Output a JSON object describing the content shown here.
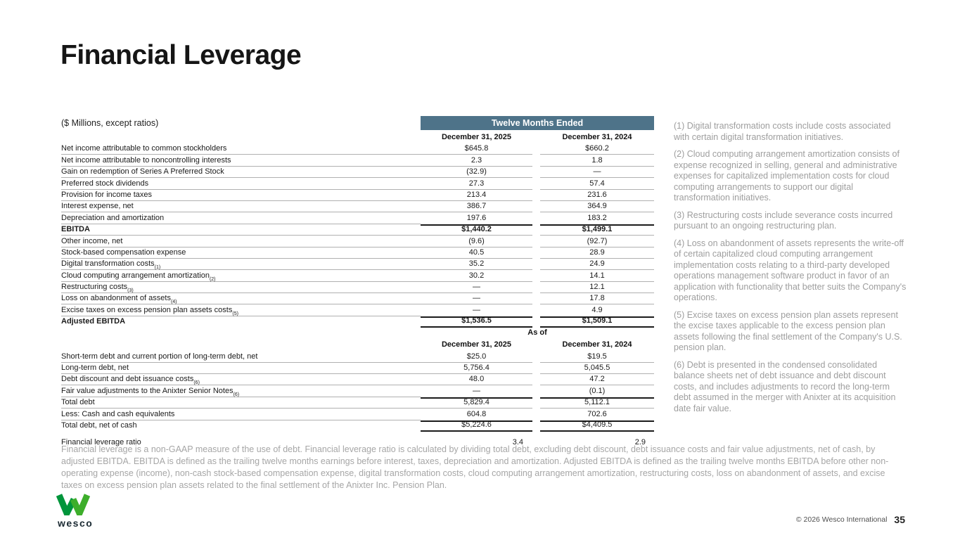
{
  "page": {
    "title": "Financial Leverage",
    "units_label": "($ Millions, except ratios)",
    "footer": {
      "logo_text": "wesco",
      "copyright": "© 2026 Wesco International",
      "page_number": "35"
    }
  },
  "colors": {
    "header_bar": "#4e7389",
    "logo_green_dark": "#00953b",
    "logo_green_bright": "#3dae2b",
    "row_line_gray": "#b0b0b0",
    "total_line_black": "#1b1b1b",
    "footnote_gray": "#9e9e9e"
  },
  "table": {
    "section1": {
      "header": "Twelve Months Ended",
      "col_headers": [
        "December 31, 2025",
        "December 31, 2024"
      ],
      "rows": [
        {
          "label": "Net income attributable to common stockholders",
          "sup": "",
          "v1": "$645.8",
          "v2": "$660.2"
        },
        {
          "label": "Net income attributable to noncontrolling interests",
          "sup": "",
          "v1": "2.3",
          "v2": "1.8"
        },
        {
          "label": "Gain on redemption of Series A Preferred Stock",
          "sup": "",
          "v1": "(32.9)",
          "v2": "—"
        },
        {
          "label": "Preferred stock dividends",
          "sup": "",
          "v1": "27.3",
          "v2": "57.4"
        },
        {
          "label": "Provision for income taxes",
          "sup": "",
          "v1": "213.4",
          "v2": "231.6"
        },
        {
          "label": "Interest expense, net",
          "sup": "",
          "v1": "386.7",
          "v2": "364.9"
        },
        {
          "label": "Depreciation and amortization",
          "sup": "",
          "v1": "197.6",
          "v2": "183.2",
          "lblOnly": true
        },
        {
          "label": "EBITDA",
          "sup": "",
          "v1": "$1,440.2",
          "v2": "$1,499.1",
          "bold": true,
          "top": true
        },
        {
          "label": "Other income, net",
          "sup": "",
          "v1": "(9.6)",
          "v2": "(92.7)"
        },
        {
          "label": "Stock-based compensation expense",
          "sup": "",
          "v1": "40.5",
          "v2": "28.9"
        },
        {
          "label": "Digital transformation costs",
          "sup": "(1)",
          "v1": "35.2",
          "v2": "24.9"
        },
        {
          "label": "Cloud computing arrangement amortization",
          "sup": "(2)",
          "v1": "30.2",
          "v2": "14.1"
        },
        {
          "label": "Restructuring costs",
          "sup": "(3)",
          "v1": "—",
          "v2": "12.1"
        },
        {
          "label": "Loss on abandonment of assets",
          "sup": "(4)",
          "v1": "—",
          "v2": "17.8"
        },
        {
          "label": "Excise taxes on excess pension plan assets costs",
          "sup": "(5)",
          "v1": "—",
          "v2": "4.9",
          "lblOnly": true
        },
        {
          "label": "Adjusted EBITDA",
          "sup": "",
          "v1": "$1,536.5",
          "v2": "$1,509.1",
          "bold": true,
          "top": true,
          "bottom": true
        }
      ]
    },
    "section2": {
      "header": "As of",
      "col_headers": [
        "December 31, 2025",
        "December 31, 2024"
      ],
      "rows": [
        {
          "label": "Short-term debt and current portion of long-term debt, net",
          "sup": "",
          "v1": "$25.0",
          "v2": "$19.5"
        },
        {
          "label": "Long-term debt, net",
          "sup": "",
          "v1": "5,756.4",
          "v2": "5,045.5"
        },
        {
          "label": "Debt discount and debt issuance costs",
          "sup": "(6)",
          "v1": "48.0",
          "v2": "47.2"
        },
        {
          "label": "Fair value adjustments to the Anixter Senior Notes",
          "sup": "(6)",
          "v1": "—",
          "v2": "(0.1)",
          "lblOnly": true
        },
        {
          "label": "Total debt",
          "sup": "",
          "v1": "5,829.4",
          "v2": "5,112.1",
          "top": true
        },
        {
          "label": "Less: Cash and cash equivalents",
          "sup": "",
          "v1": "604.8",
          "v2": "702.6",
          "lblOnly": true
        },
        {
          "label": "Total debt, net of cash",
          "sup": "",
          "v1": "$5,224.6",
          "v2": "$4,409.5",
          "top": true,
          "bottom": true
        }
      ]
    },
    "ratio_row": {
      "label": "Financial leverage ratio",
      "v1": "3.4",
      "v2": "2.9"
    }
  },
  "footnotes": [
    "(1) Digital transformation costs include costs associated with certain digital transformation initiatives.",
    "(2) Cloud computing arrangement amortization consists of expense recognized in selling, general and administrative expenses for capitalized implementation costs for cloud computing arrangements to support our digital transformation initiatives.",
    "(3) Restructuring costs include severance costs incurred pursuant to an ongoing restructuring plan.",
    "(4) Loss on abandonment of assets represents the write-off of certain capitalized cloud computing arrangement implementation costs relating to a third-party developed operations management software product in favor of an application with functionality that better suits the Company's operations.",
    "(5) Excise taxes on excess pension plan assets represent the excise taxes applicable to the excess pension plan assets following the final settlement of the Company's U.S. pension plan.",
    "(6) Debt is presented in the condensed consolidated balance sheets net of debt issuance and debt discount costs, and includes adjustments to record the long-term debt assumed in the merger with Anixter at its acquisition date fair value."
  ],
  "description": "Financial leverage is a non-GAAP measure of the use of debt. Financial leverage ratio is calculated by dividing total debt, excluding debt discount, debt issuance costs and fair value adjustments, net of cash, by adjusted EBITDA. EBITDA is defined as the trailing twelve months earnings before interest, taxes, depreciation and amortization. Adjusted EBITDA is defined as the trailing twelve months EBITDA before other non-operating expense (income), non-cash stock-based compensation expense, digital transformation costs, cloud computing arrangement amortization, restructuring costs, loss on abandonment of assets, and excise taxes on excess pension plan assets related to the final settlement of the Anixter Inc. Pension Plan."
}
